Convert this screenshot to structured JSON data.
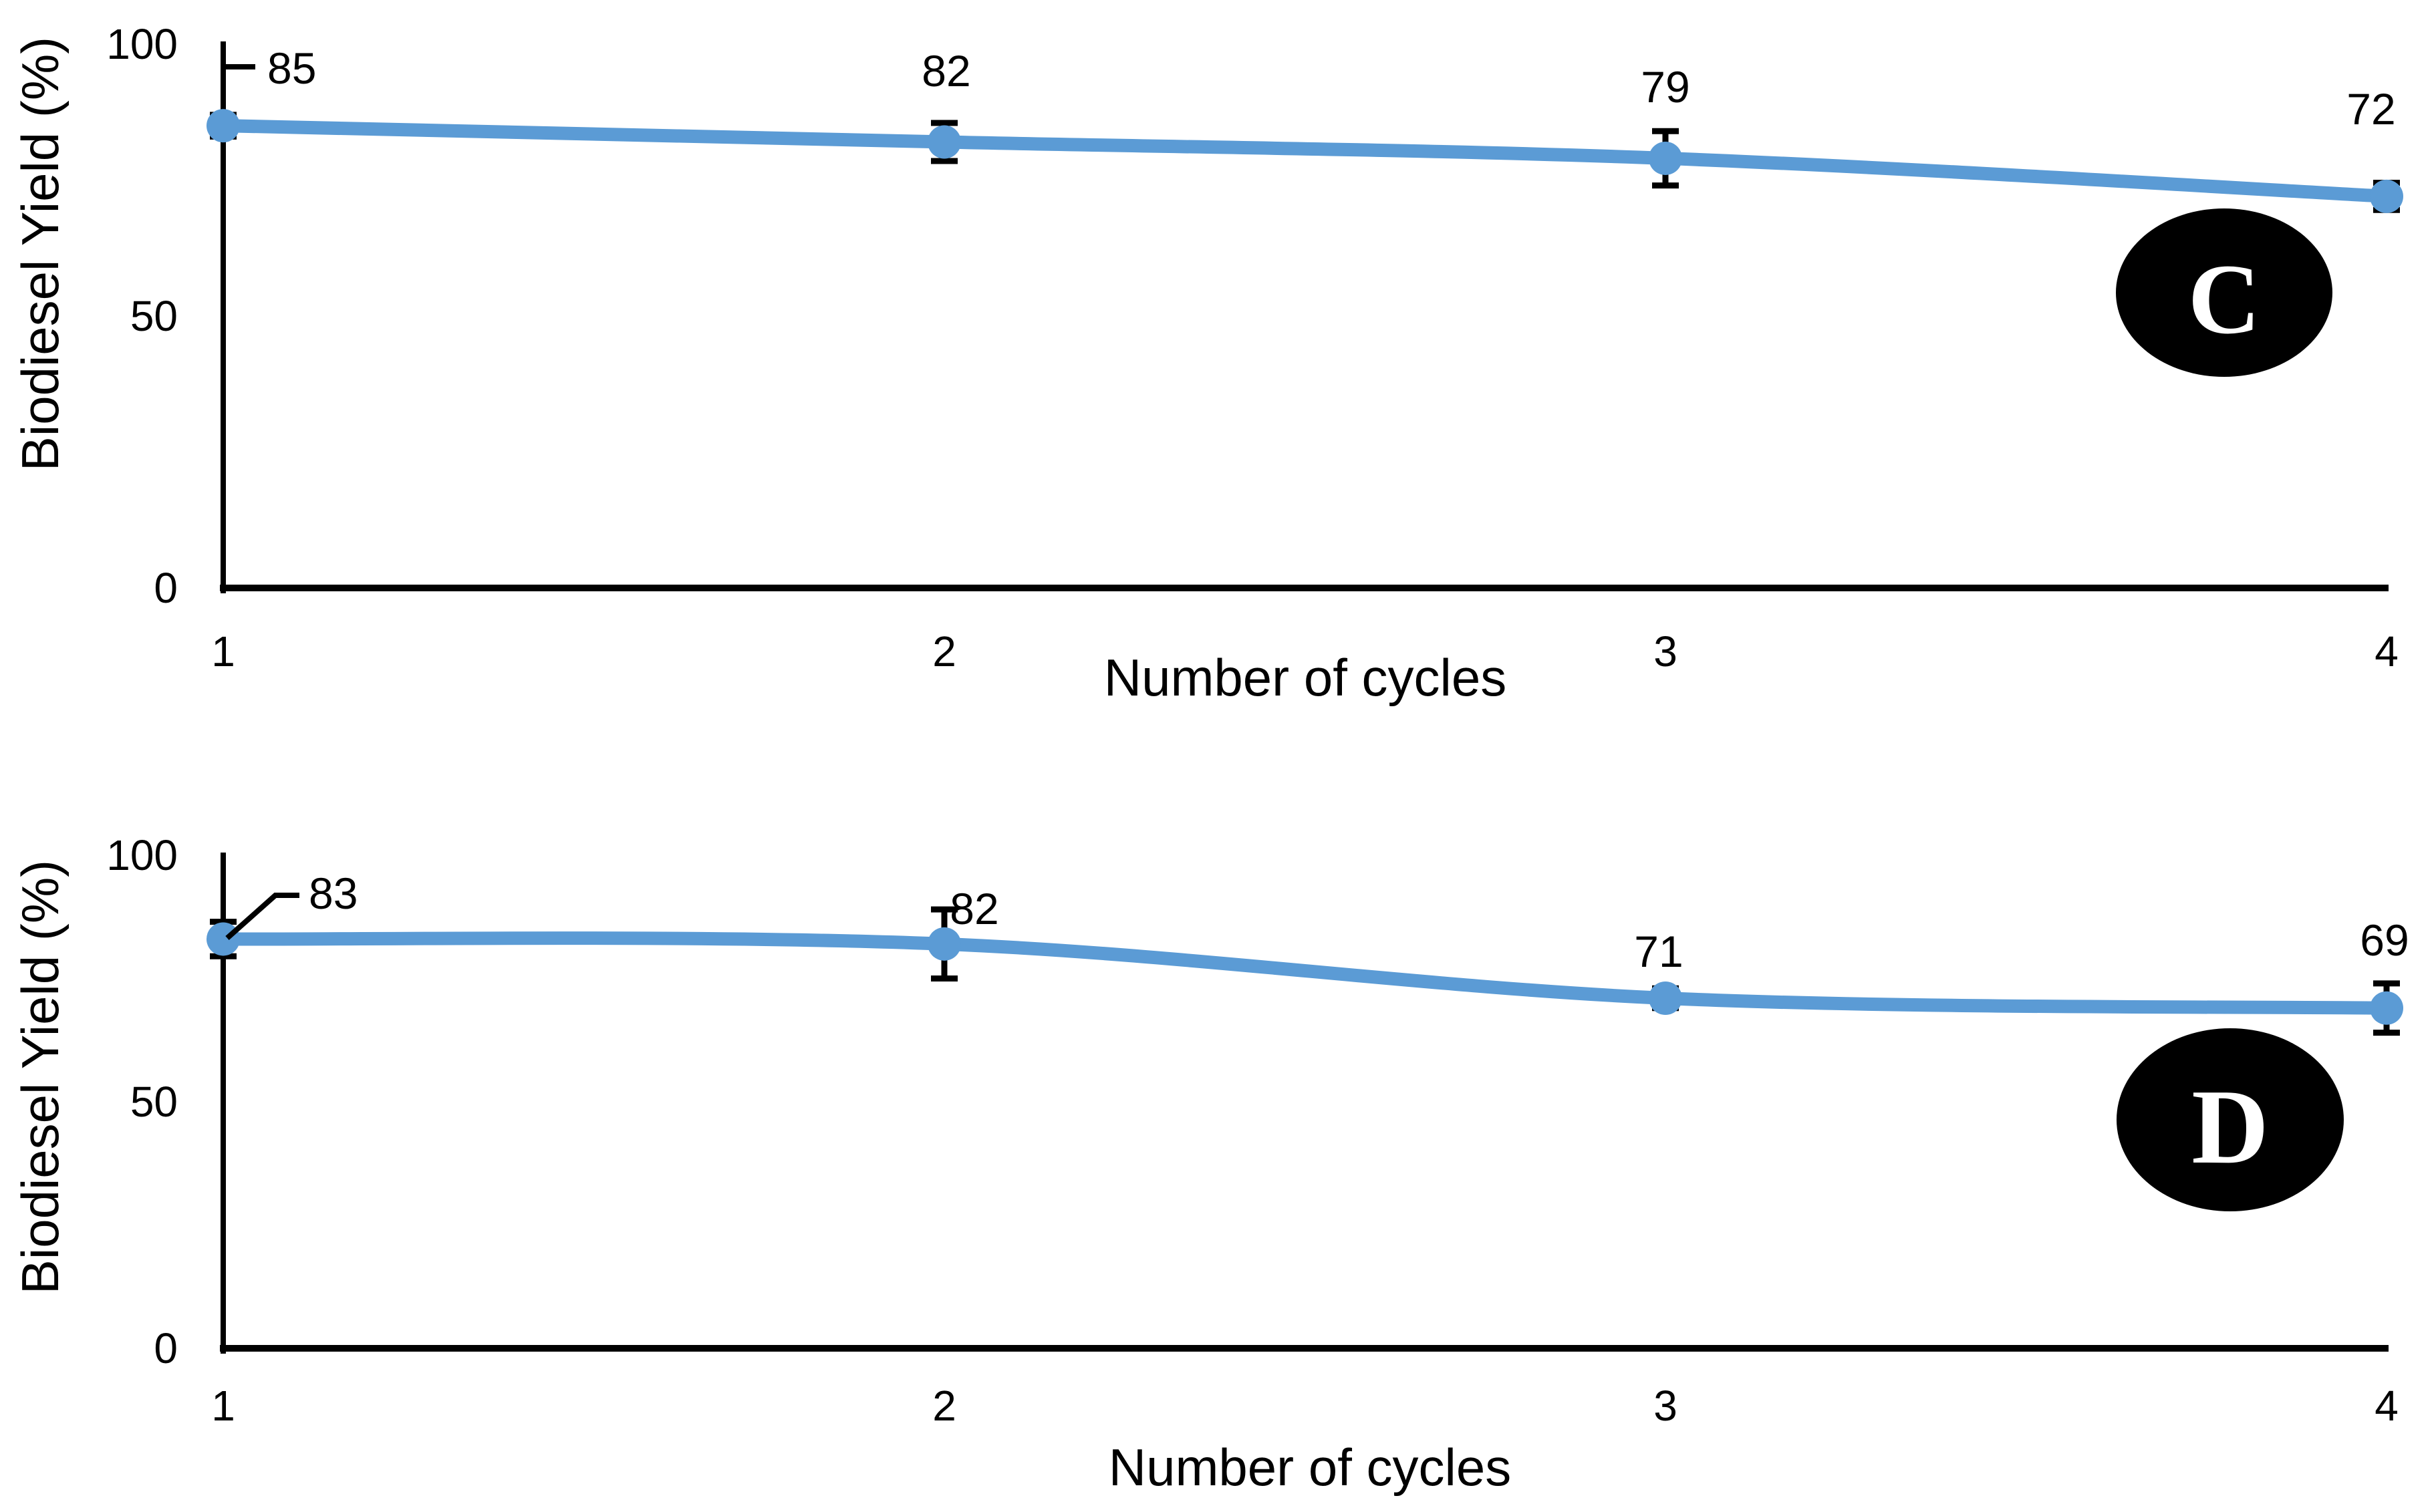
{
  "figure": {
    "background": "#ffffff",
    "accent_color": "#5b9bd5",
    "axis_color": "#000000",
    "text_color": "#000000",
    "badge_fill": "#000000",
    "badge_text_color": "#ffffff"
  },
  "chart_data": [
    {
      "type": "line",
      "panel_label": "C",
      "title": "",
      "xlabel": "Number of cycles",
      "ylabel": "Biodiesel Yield (%)",
      "x": [
        1,
        2,
        3,
        4
      ],
      "values": [
        85,
        82,
        79,
        72
      ],
      "errors": [
        2,
        3.5,
        5,
        2.5
      ],
      "data_labels": [
        "85",
        "82",
        "79",
        "72"
      ],
      "xticks": [
        "1",
        "2",
        "3",
        "4"
      ],
      "yticks": [
        0,
        50,
        100
      ],
      "ytick_labels": [
        "0",
        "50",
        "100"
      ],
      "ylim": [
        0,
        100
      ],
      "grid": false,
      "legend_position": "none",
      "marker": "circle",
      "line_color": "#5b9bd5",
      "error_bar_color": "#000000"
    },
    {
      "type": "line",
      "panel_label": "D",
      "title": "",
      "xlabel": "Number of cycles",
      "ylabel": "Biodiesel Yield (%)",
      "x": [
        1,
        2,
        3,
        4
      ],
      "values": [
        83,
        82,
        71,
        69
      ],
      "errors": [
        3.5,
        7,
        2,
        5
      ],
      "data_labels": [
        "83",
        "82",
        "71",
        "69"
      ],
      "xticks": [
        "1",
        "2",
        "3",
        "4"
      ],
      "yticks": [
        0,
        50,
        100
      ],
      "ytick_labels": [
        "0",
        "50",
        "100"
      ],
      "ylim": [
        0,
        100
      ],
      "grid": false,
      "legend_position": "none",
      "marker": "circle",
      "line_color": "#5b9bd5",
      "error_bar_color": "#000000"
    }
  ]
}
